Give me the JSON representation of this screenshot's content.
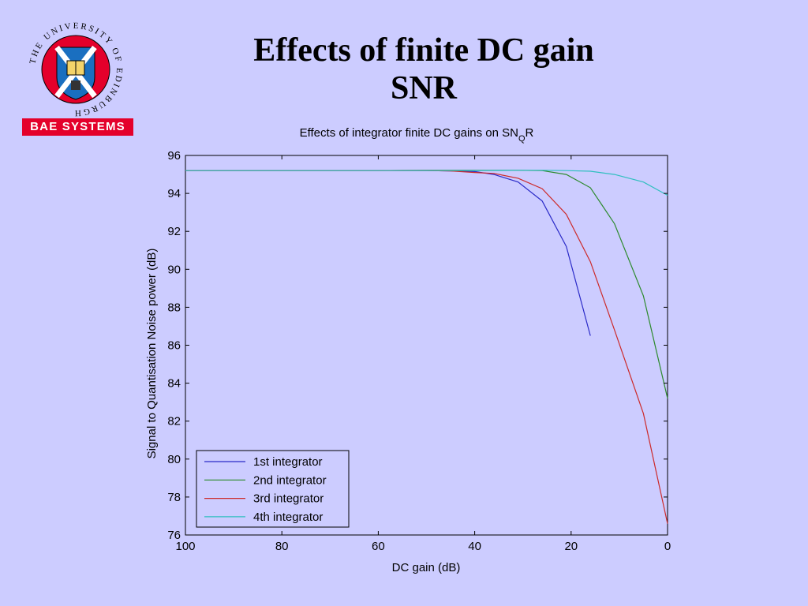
{
  "slide": {
    "title_line1": "Effects of finite DC gain",
    "title_line2": "SNR"
  },
  "logos": {
    "university_text": "THE UNIVERSITY OF EDINBURGH",
    "bae_text": "BAE SYSTEMS",
    "bae_color": "#e4002b",
    "crest_colors": {
      "ring": "#e4002b",
      "shield": "#1a6fc0",
      "saltire": "#ffffff"
    }
  },
  "chart_data": {
    "type": "line",
    "title": "Effects of integrator finite DC gains on SN",
    "title_subscript": "Q",
    "title_suffix": "R",
    "xlabel": "DC gain (dB)",
    "ylabel": "Signal to Quantisation Noise power (dB)",
    "xlim": [
      100,
      0
    ],
    "ylim": [
      76,
      96
    ],
    "x_reversed": true,
    "xticks": [
      100,
      80,
      60,
      40,
      20,
      0
    ],
    "yticks": [
      76,
      78,
      80,
      82,
      84,
      86,
      88,
      90,
      92,
      94,
      96
    ],
    "grid": false,
    "legend_position": "bottom-left",
    "plot_background": "#ccccff",
    "series": [
      {
        "name": "1st integrator",
        "color": "#2b2bc8",
        "points": [
          [
            100,
            95.2
          ],
          [
            60,
            95.2
          ],
          [
            50,
            95.2
          ],
          [
            45,
            95.18
          ],
          [
            40,
            95.15
          ],
          [
            36,
            95.0
          ],
          [
            31,
            94.6
          ],
          [
            26,
            93.6
          ],
          [
            21,
            91.2
          ],
          [
            16,
            86.5
          ]
        ]
      },
      {
        "name": "2nd integrator",
        "color": "#2d8a2d",
        "points": [
          [
            100,
            95.2
          ],
          [
            60,
            95.2
          ],
          [
            50,
            95.22
          ],
          [
            40,
            95.22
          ],
          [
            31,
            95.22
          ],
          [
            26,
            95.2
          ],
          [
            21,
            95.0
          ],
          [
            16,
            94.3
          ],
          [
            11,
            92.4
          ],
          [
            5,
            88.6
          ],
          [
            0,
            83.2
          ]
        ]
      },
      {
        "name": "3rd integrator",
        "color": "#cc2a2a",
        "points": [
          [
            100,
            95.2
          ],
          [
            60,
            95.2
          ],
          [
            50,
            95.2
          ],
          [
            45,
            95.18
          ],
          [
            40,
            95.1
          ],
          [
            36,
            95.05
          ],
          [
            31,
            94.8
          ],
          [
            26,
            94.25
          ],
          [
            21,
            92.9
          ],
          [
            16,
            90.4
          ],
          [
            11,
            86.8
          ],
          [
            5,
            82.4
          ],
          [
            0,
            76.6
          ]
        ]
      },
      {
        "name": "4th integrator",
        "color": "#2fbfbf",
        "points": [
          [
            100,
            95.2
          ],
          [
            60,
            95.2
          ],
          [
            50,
            95.2
          ],
          [
            40,
            95.2
          ],
          [
            30,
            95.22
          ],
          [
            26,
            95.22
          ],
          [
            21,
            95.2
          ],
          [
            16,
            95.17
          ],
          [
            11,
            95.0
          ],
          [
            5,
            94.6
          ],
          [
            0,
            93.9
          ]
        ]
      }
    ]
  }
}
